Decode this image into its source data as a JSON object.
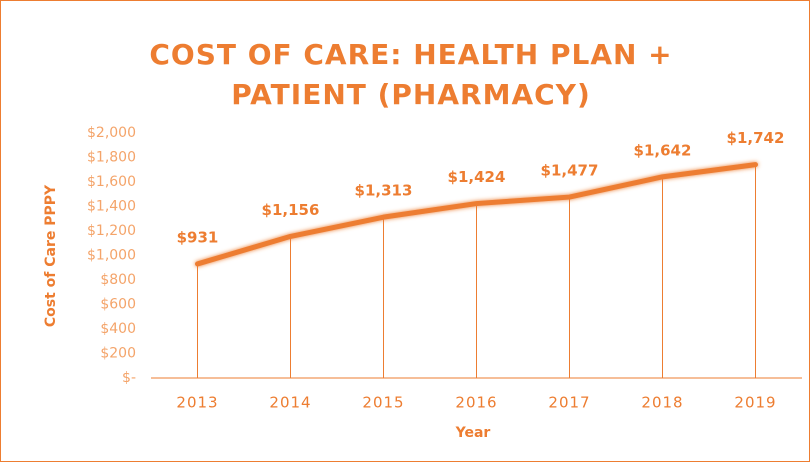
{
  "chart_data": {
    "type": "line",
    "title": "COST OF CARE: HEALTH PLAN + PATIENT (PHARMACY)",
    "x_label": "Year",
    "y_label": "Cost of Care PPPY",
    "categories": [
      "2013",
      "2014",
      "2015",
      "2016",
      "2017",
      "2018",
      "2019"
    ],
    "series": [
      {
        "name": "Cost of Care PPPY",
        "color": "#ed7d31",
        "values": [
          931,
          1156,
          1313,
          1424,
          1477,
          1642,
          1742
        ],
        "value_labels": [
          "$931",
          "$1,156",
          "$1,313",
          "$1,424",
          "$1,477",
          "$1,642",
          "$1,742"
        ]
      }
    ],
    "ylim": [
      0,
      2000
    ],
    "yticks": [
      {
        "value": 0,
        "label": "$-"
      },
      {
        "value": 200,
        "label": "$200"
      },
      {
        "value": 400,
        "label": "$400"
      },
      {
        "value": 600,
        "label": "$600"
      },
      {
        "value": 800,
        "label": "$800"
      },
      {
        "value": 1000,
        "label": "$1,000"
      },
      {
        "value": 1200,
        "label": "$1,200"
      },
      {
        "value": 1400,
        "label": "$1,400"
      },
      {
        "value": 1600,
        "label": "$1,600"
      },
      {
        "value": 1800,
        "label": "$1,800"
      },
      {
        "value": 2000,
        "label": "$2,000"
      }
    ],
    "drop_lines": true
  }
}
